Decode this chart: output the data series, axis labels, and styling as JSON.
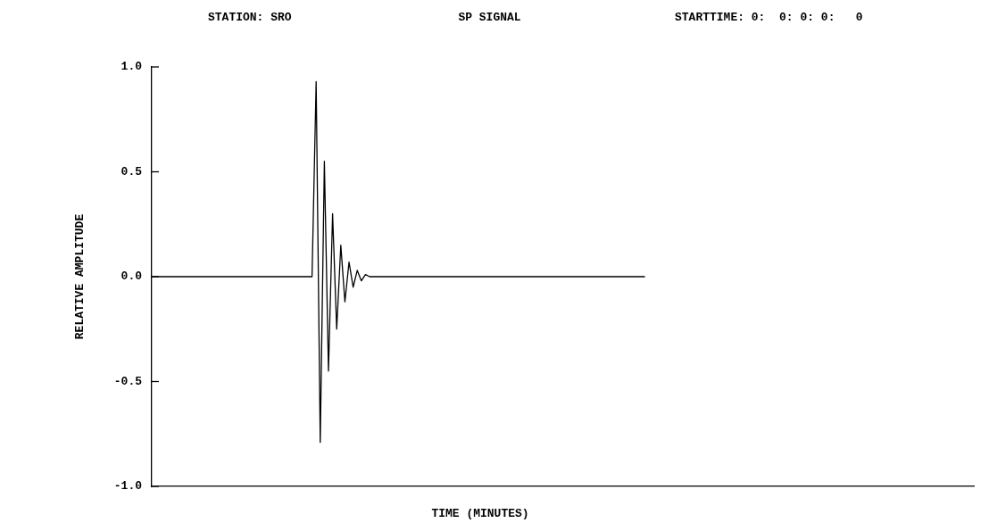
{
  "chart_data": {
    "type": "line",
    "title": "SP SIGNAL",
    "xlabel": "TIME (MINUTES)",
    "ylabel": "RELATIVE AMPLITUDE",
    "annotations": [
      "STATION: SRO",
      "STARTTIME: 0:  0: 0: 0:   0"
    ],
    "categories": [
      null,
      null,
      null,
      null,
      null,
      null,
      null,
      null,
      null,
      null,
      null,
      null,
      null,
      null,
      null,
      null,
      null,
      null,
      null,
      null,
      null,
      null,
      null,
      null,
      null,
      null,
      null,
      null,
      null,
      null,
      null,
      null,
      null,
      null,
      null,
      null,
      null,
      null,
      null,
      null,
      null,
      null,
      null,
      null,
      null,
      null,
      null,
      null,
      null,
      null,
      null,
      null,
      null,
      null,
      null,
      null,
      null,
      null,
      null,
      null,
      null,
      null,
      null,
      null,
      null,
      null,
      null,
      null,
      null,
      null,
      null,
      null,
      null,
      null,
      null,
      null,
      null,
      null,
      null,
      null,
      null,
      null,
      null,
      null,
      null,
      null,
      null,
      null,
      null,
      null,
      null,
      null,
      null,
      null,
      null,
      null,
      null,
      null,
      null,
      null,
      null,
      null,
      null,
      null,
      null,
      null,
      null,
      null,
      null,
      null,
      null,
      null,
      null,
      null,
      null,
      null,
      null,
      null,
      null,
      null,
      null,
      null,
      null,
      null,
      null,
      null,
      null,
      null,
      null,
      null,
      null,
      null,
      null,
      null,
      null,
      null,
      null,
      null,
      null,
      null,
      null,
      null,
      null,
      null,
      null,
      null,
      null,
      null,
      null,
      null,
      null,
      null,
      null,
      null,
      null,
      null,
      null,
      null,
      null,
      null,
      null,
      null,
      null,
      null,
      null,
      null,
      null,
      null,
      null,
      null,
      null,
      null,
      null,
      null,
      null,
      null,
      null,
      null,
      null,
      null,
      null,
      null,
      null,
      null,
      null,
      null,
      null,
      null,
      null,
      null,
      null,
      null,
      null,
      null,
      null,
      null,
      null,
      null,
      null,
      null,
      null
    ],
    "series": [
      {
        "color": "#000000",
        "values": [
          0,
          0,
          0,
          0,
          0,
          0,
          0,
          0,
          0,
          0,
          0,
          0,
          0,
          0,
          0,
          0,
          0,
          0,
          0,
          0,
          0,
          0,
          0,
          0,
          0,
          0,
          0,
          0,
          0,
          0,
          0,
          0,
          0,
          0,
          0,
          0,
          0,
          0,
          0,
          0,
          0.93,
          -0.79,
          0.55,
          -0.45,
          0.3,
          -0.25,
          0.15,
          -0.12,
          0.07,
          -0.05,
          0.03,
          -0.02,
          0.01,
          0,
          0,
          0,
          0,
          0,
          0,
          0,
          0,
          0,
          0,
          0,
          0,
          0,
          0,
          0,
          0,
          0,
          0,
          0,
          0,
          0,
          0,
          0,
          0,
          0,
          0,
          0,
          0,
          0,
          0,
          0,
          0,
          0,
          0,
          0,
          0,
          0,
          0,
          0,
          0,
          0,
          0,
          0,
          0,
          0,
          0,
          0,
          0,
          0,
          0,
          0,
          0,
          0,
          0,
          0,
          0,
          0,
          0,
          0,
          0,
          0,
          0,
          0,
          0,
          0,
          0,
          0,
          0,
          null,
          null,
          null,
          null,
          null,
          null,
          null,
          null,
          null,
          null,
          null,
          null,
          null,
          null,
          null,
          null,
          null,
          null,
          null,
          null,
          null,
          null,
          null,
          null,
          null,
          null,
          null,
          null,
          null,
          null,
          null,
          null,
          null,
          null,
          null,
          null,
          null,
          null,
          null,
          null,
          null,
          null,
          null,
          null,
          null,
          null,
          null,
          null,
          null,
          null,
          null,
          null,
          null,
          null,
          null,
          null,
          null,
          null,
          null,
          null,
          null,
          null,
          null,
          null,
          null,
          null,
          null,
          null,
          null,
          null,
          null,
          null,
          null,
          null,
          null,
          null,
          null,
          null,
          null,
          null
        ]
      }
    ],
    "ylim": [
      -1,
      1
    ],
    "yticks": [
      {
        "value": -1,
        "label": "-1.0"
      },
      {
        "value": -0.5,
        "label": "-0.5"
      },
      {
        "value": 0,
        "label": "0.0"
      },
      {
        "value": 0.5,
        "label": "0.5"
      },
      {
        "value": 1,
        "label": "1.0"
      }
    ],
    "tick_labels": "y",
    "grid": false,
    "legend": false
  }
}
